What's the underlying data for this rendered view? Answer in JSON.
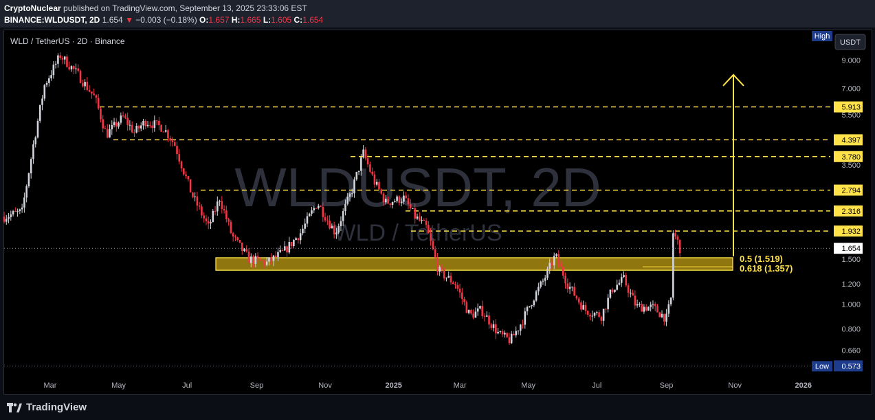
{
  "header": {
    "author": "CryptoNuclear",
    "published_text": "published on TradingView.com, September 13, 2025 23:33:06 EST",
    "symbol": "BINANCE:WLDUSDT, 2D",
    "last": "1.654",
    "change": "−0.003 (−0.18%)",
    "o_label": "O:",
    "o": "1.657",
    "h_label": "H:",
    "h": "1.665",
    "l_label": "L:",
    "l": "1.605",
    "c_label": "C:",
    "c": "1.654"
  },
  "legend": "WLD / TetherUS · 2D · Binance",
  "watermark": {
    "title": "WLDUSDT, 2D",
    "subtitle": "WLD / TetherUS"
  },
  "footer": {
    "brand": "TradingView"
  },
  "chart_data": {
    "type": "candlestick",
    "currency": "USDT",
    "y_scale": "log",
    "ylim": [
      0.52,
      11.8
    ],
    "y_ticks": [
      "9.000",
      "7.000",
      "5.500",
      "4.397",
      "3.500",
      "2.800",
      "2.316",
      "1.932",
      "1.500",
      "1.200",
      "1.000",
      "0.800",
      "0.660"
    ],
    "y_tick_values": [
      9.0,
      7.0,
      5.5,
      3.5,
      2.8,
      1.5,
      1.2,
      1.0,
      0.8,
      0.66
    ],
    "x_labels": [
      "Mar",
      "May",
      "Jul",
      "Sep",
      "Nov",
      "2025",
      "Mar",
      "May",
      "Jul",
      "Sep",
      "Nov",
      "2026"
    ],
    "last_price": {
      "value": 1.654,
      "label": "1.654"
    },
    "high": {
      "label": "High",
      "value": 9.8
    },
    "low": {
      "label": "Low",
      "value": 0.573,
      "value_label": "0.573"
    },
    "levels": [
      {
        "value": 5.913,
        "label": "5.913"
      },
      {
        "value": 4.397,
        "label": "4.397"
      },
      {
        "value": 3.78,
        "label": "3.780"
      },
      {
        "value": 2.794,
        "label": "2.794"
      },
      {
        "value": 2.316,
        "label": "2.316"
      },
      {
        "value": 1.932,
        "label": "1.932"
      }
    ],
    "zone": {
      "top": 1.519,
      "bottom": 1.357,
      "top_label": "0.5 (1.519)",
      "bottom_label": "0.618 (1.357)"
    },
    "target_arrow_value": 7.9,
    "series_anchors": [
      [
        "2024-01-20",
        2.2
      ],
      [
        "2024-02-05",
        2.3
      ],
      [
        "2024-02-15",
        4.2
      ],
      [
        "2024-02-25",
        7.2
      ],
      [
        "2024-03-10",
        9.4
      ],
      [
        "2024-03-25",
        8.0
      ],
      [
        "2024-04-10",
        6.4
      ],
      [
        "2024-04-20",
        4.6
      ],
      [
        "2024-05-05",
        5.4
      ],
      [
        "2024-05-15",
        4.7
      ],
      [
        "2024-05-25",
        5.2
      ],
      [
        "2024-06-10",
        4.9
      ],
      [
        "2024-06-20",
        4.2
      ],
      [
        "2024-07-05",
        2.7
      ],
      [
        "2024-07-20",
        2.0
      ],
      [
        "2024-07-30",
        2.6
      ],
      [
        "2024-08-10",
        1.85
      ],
      [
        "2024-08-25",
        1.5
      ],
      [
        "2024-09-10",
        1.45
      ],
      [
        "2024-09-25",
        1.6
      ],
      [
        "2024-10-10",
        1.9
      ],
      [
        "2024-10-25",
        2.5
      ],
      [
        "2024-11-10",
        1.9
      ],
      [
        "2024-11-25",
        2.8
      ],
      [
        "2024-12-05",
        3.9
      ],
      [
        "2024-12-15",
        3.0
      ],
      [
        "2024-12-25",
        2.5
      ],
      [
        "2025-01-10",
        2.6
      ],
      [
        "2025-01-20",
        2.2
      ],
      [
        "2025-01-30",
        2.0
      ],
      [
        "2025-02-10",
        1.35
      ],
      [
        "2025-02-25",
        1.2
      ],
      [
        "2025-03-10",
        0.9
      ],
      [
        "2025-03-20",
        0.95
      ],
      [
        "2025-04-05",
        0.76
      ],
      [
        "2025-04-15",
        0.72
      ],
      [
        "2025-04-25",
        0.85
      ],
      [
        "2025-05-05",
        1.05
      ],
      [
        "2025-05-15",
        1.25
      ],
      [
        "2025-05-25",
        1.55
      ],
      [
        "2025-06-05",
        1.2
      ],
      [
        "2025-06-20",
        0.95
      ],
      [
        "2025-07-05",
        0.9
      ],
      [
        "2025-07-15",
        1.15
      ],
      [
        "2025-07-25",
        1.25
      ],
      [
        "2025-08-05",
        0.98
      ],
      [
        "2025-08-20",
        0.97
      ],
      [
        "2025-09-01",
        0.88
      ],
      [
        "2025-09-05",
        1.05
      ],
      [
        "2025-09-07",
        1.9
      ],
      [
        "2025-09-11",
        1.75
      ],
      [
        "2025-09-13",
        1.654
      ]
    ]
  },
  "colors": {
    "up": "#d1d4dc",
    "down": "#f23645",
    "level_line": "#ffe24a",
    "zone_fill": "#c8a415",
    "axis_badge_bg": "#ffe24a",
    "high_low_badge_bg": "#1e3c8c",
    "last_price_badge_bg": "#ffffff"
  }
}
